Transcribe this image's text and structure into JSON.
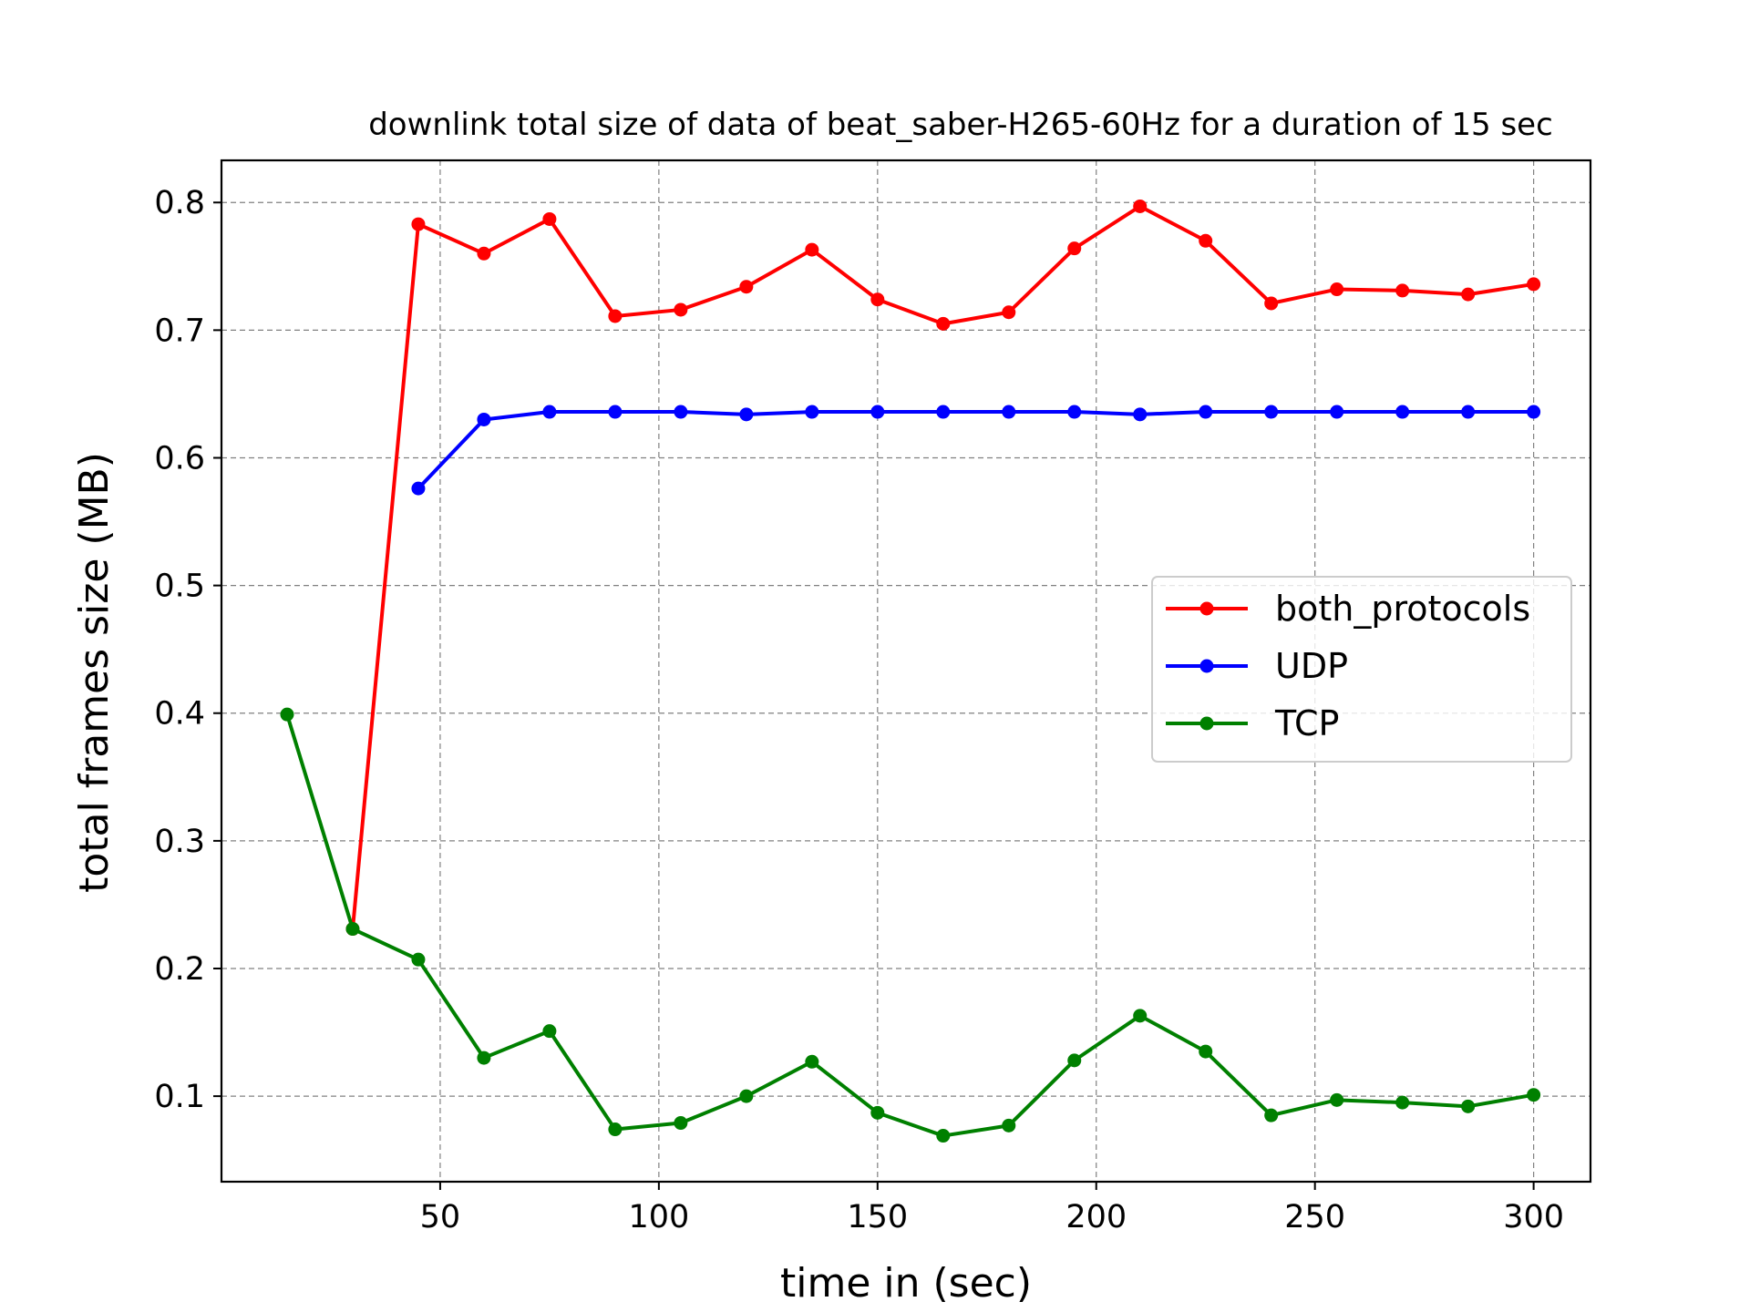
{
  "chart_data": {
    "type": "line",
    "title": "downlink total size of data of beat_saber-H265-60Hz for a duration of 15 sec",
    "xlabel": "time in (sec)",
    "ylabel": "total frames size (MB)",
    "xlim": [
      0,
      313
    ],
    "ylim": [
      0.033,
      0.833
    ],
    "xticks": [
      50,
      100,
      150,
      200,
      250,
      300
    ],
    "yticks": [
      0.1,
      0.2,
      0.3,
      0.4,
      0.5,
      0.6,
      0.7,
      0.8
    ],
    "xtick_labels": [
      "50",
      "100",
      "150",
      "200",
      "250",
      "300"
    ],
    "ytick_labels": [
      "0.1",
      "0.2",
      "0.3",
      "0.4",
      "0.5",
      "0.6",
      "0.7",
      "0.8"
    ],
    "grid": true,
    "legend_position": "center-right",
    "series": [
      {
        "name": "both_protocols",
        "color": "#ff0000",
        "x": [
          30,
          45,
          60,
          75,
          90,
          105,
          120,
          135,
          150,
          165,
          180,
          195,
          210,
          225,
          240,
          255,
          270,
          285,
          300
        ],
        "y": [
          0.231,
          0.783,
          0.76,
          0.787,
          0.711,
          0.716,
          0.734,
          0.763,
          0.724,
          0.705,
          0.714,
          0.764,
          0.797,
          0.77,
          0.721,
          0.732,
          0.731,
          0.728,
          0.736
        ]
      },
      {
        "name": "UDP",
        "color": "#0000ff",
        "x": [
          45,
          60,
          75,
          90,
          105,
          120,
          135,
          150,
          165,
          180,
          195,
          210,
          225,
          240,
          255,
          270,
          285,
          300
        ],
        "y": [
          0.576,
          0.63,
          0.636,
          0.636,
          0.636,
          0.634,
          0.636,
          0.636,
          0.636,
          0.636,
          0.636,
          0.634,
          0.636,
          0.636,
          0.636,
          0.636,
          0.636,
          0.636
        ]
      },
      {
        "name": "TCP",
        "color": "#008000",
        "x": [
          15,
          30,
          45,
          60,
          75,
          90,
          105,
          120,
          135,
          150,
          165,
          180,
          195,
          210,
          225,
          240,
          255,
          270,
          285,
          300
        ],
        "y": [
          0.399,
          0.231,
          0.207,
          0.13,
          0.151,
          0.074,
          0.079,
          0.1,
          0.127,
          0.087,
          0.069,
          0.077,
          0.128,
          0.163,
          0.135,
          0.085,
          0.097,
          0.095,
          0.092,
          0.101
        ]
      }
    ]
  }
}
